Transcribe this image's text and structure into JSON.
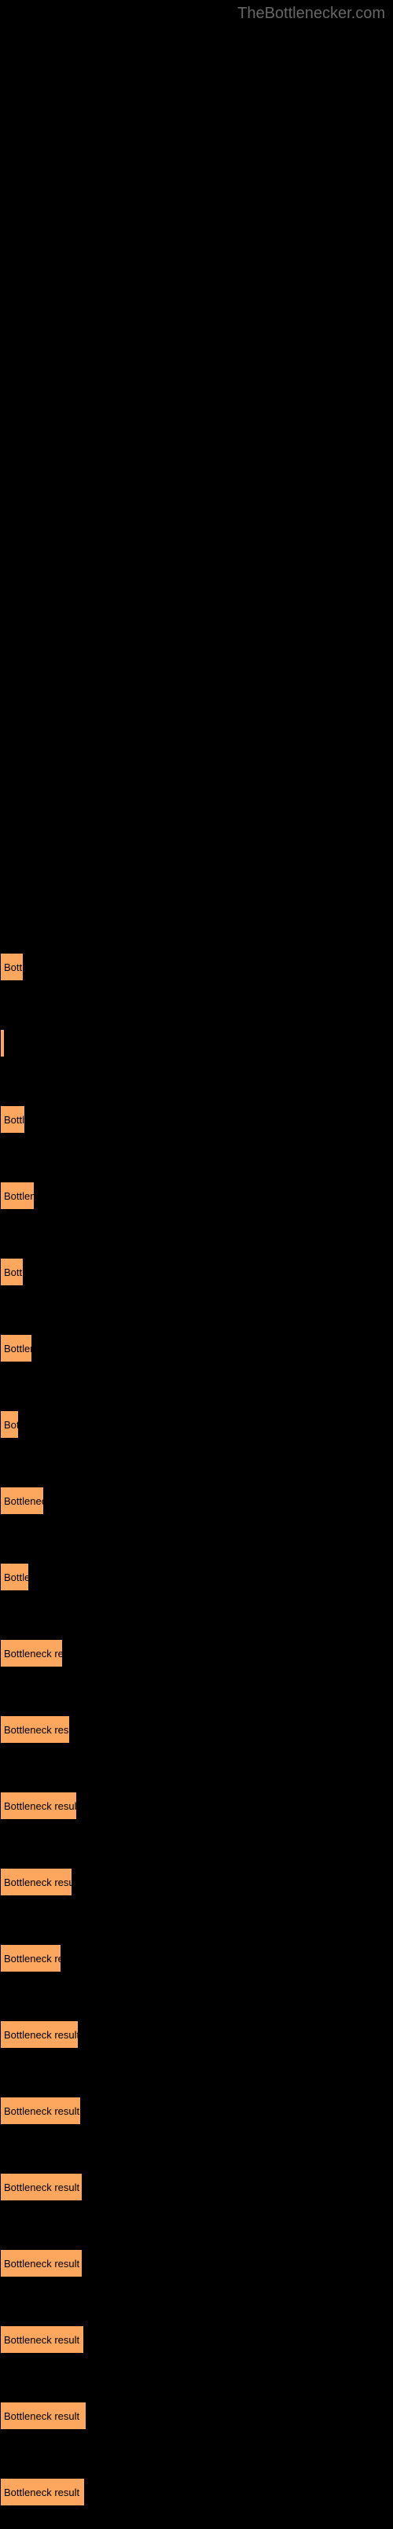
{
  "watermark": "TheBottlenecker.com",
  "chart": {
    "type": "bar",
    "background_color": "#000000",
    "bar_color": "#fca65e",
    "bar_border_color": "#000000",
    "text_color": "#000000",
    "watermark_color": "#666666",
    "label_fontsize": 13,
    "watermark_fontsize": 20,
    "full_label": "Bottleneck result",
    "bars": [
      {
        "width": 30,
        "label": "Bottl"
      },
      {
        "width": 6,
        "label": ""
      },
      {
        "width": 32,
        "label": "Bottle"
      },
      {
        "width": 44,
        "label": "Bottlene"
      },
      {
        "width": 30,
        "label": "Bottle"
      },
      {
        "width": 41,
        "label": "Bottlen"
      },
      {
        "width": 24,
        "label": "Bot"
      },
      {
        "width": 56,
        "label": "Bottleneck"
      },
      {
        "width": 37,
        "label": "Bottler"
      },
      {
        "width": 80,
        "label": "Bottleneck res"
      },
      {
        "width": 89,
        "label": "Bottleneck resu"
      },
      {
        "width": 98,
        "label": "Bottleneck result"
      },
      {
        "width": 92,
        "label": "Bottleneck resu"
      },
      {
        "width": 78,
        "label": "Bottleneck re"
      },
      {
        "width": 100,
        "label": "Bottleneck result"
      },
      {
        "width": 103,
        "label": "Bottleneck result"
      },
      {
        "width": 105,
        "label": "Bottleneck result"
      },
      {
        "width": 105,
        "label": "Bottleneck result"
      },
      {
        "width": 107,
        "label": "Bottleneck result"
      },
      {
        "width": 110,
        "label": "Bottleneck result"
      },
      {
        "width": 108,
        "label": "Bottleneck result"
      }
    ]
  }
}
